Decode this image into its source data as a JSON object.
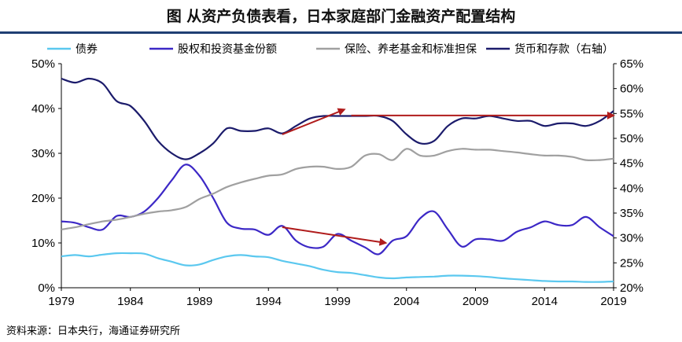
{
  "title": "图 从资产负债表看，日本家庭部门金融资产配置结构",
  "source": "资料来源：日本央行，海通证券研究所",
  "chart_data": {
    "type": "line",
    "title": "图 从资产负债表看，日本家庭部门金融资产配置结构",
    "x": [
      1979,
      1980,
      1981,
      1982,
      1983,
      1984,
      1985,
      1986,
      1987,
      1988,
      1989,
      1990,
      1991,
      1992,
      1993,
      1994,
      1995,
      1996,
      1997,
      1998,
      1999,
      2000,
      2001,
      2002,
      2003,
      2004,
      2005,
      2006,
      2007,
      2008,
      2009,
      2010,
      2011,
      2012,
      2013,
      2014,
      2015,
      2016,
      2017,
      2018,
      2019
    ],
    "xticks": [
      1979,
      1984,
      1989,
      1994,
      1999,
      2004,
      2009,
      2014,
      2019
    ],
    "left_axis": {
      "ylim": [
        0,
        50
      ],
      "ticks": [
        "0%",
        "10%",
        "20%",
        "30%",
        "40%",
        "50%"
      ]
    },
    "right_axis": {
      "ylim": [
        20,
        65
      ],
      "ticks": [
        "20%",
        "25%",
        "30%",
        "35%",
        "40%",
        "45%",
        "50%",
        "55%",
        "60%",
        "65%"
      ]
    },
    "series": [
      {
        "name": "债券",
        "axis": "left",
        "color": "#5bc8ef",
        "values": [
          7.0,
          7.3,
          7.0,
          7.4,
          7.7,
          7.7,
          7.6,
          6.6,
          5.8,
          5.0,
          5.2,
          6.2,
          7.0,
          7.3,
          7.0,
          6.8,
          6.0,
          5.4,
          4.8,
          4.0,
          3.5,
          3.3,
          2.8,
          2.3,
          2.1,
          2.3,
          2.4,
          2.5,
          2.7,
          2.7,
          2.6,
          2.4,
          2.1,
          1.9,
          1.7,
          1.5,
          1.4,
          1.4,
          1.3,
          1.3,
          1.4
        ]
      },
      {
        "name": "股权和投资基金份额",
        "axis": "left",
        "color": "#3c28c6",
        "values": [
          14.8,
          14.5,
          13.5,
          13.0,
          16.0,
          15.8,
          17.0,
          20.0,
          24.0,
          27.5,
          25.0,
          20.0,
          14.5,
          13.2,
          13.0,
          11.8,
          13.8,
          10.5,
          9.0,
          9.2,
          12.0,
          10.5,
          9.0,
          7.5,
          10.5,
          11.5,
          15.5,
          17.0,
          13.0,
          9.2,
          10.8,
          10.8,
          10.5,
          12.5,
          13.5,
          14.8,
          14.0,
          14.0,
          15.8,
          13.5,
          11.5
        ]
      },
      {
        "name": "保险、养老基金和标准担保",
        "axis": "left",
        "color": "#a0a0a0",
        "values": [
          13.0,
          13.5,
          14.2,
          14.8,
          15.2,
          15.8,
          16.5,
          17.0,
          17.3,
          18.0,
          19.8,
          21.0,
          22.5,
          23.5,
          24.3,
          25.0,
          25.3,
          26.5,
          27.0,
          27.0,
          26.5,
          27.0,
          29.5,
          29.8,
          28.5,
          31.0,
          29.5,
          29.5,
          30.5,
          31.0,
          30.8,
          30.8,
          30.5,
          30.2,
          29.8,
          29.5,
          29.5,
          29.2,
          28.5,
          28.5,
          28.8
        ]
      },
      {
        "name": "货币和存款（右轴）",
        "axis": "right",
        "color": "#1b1b6b",
        "values": [
          62.0,
          61.2,
          62.0,
          61.0,
          57.5,
          56.5,
          53.5,
          49.5,
          47.0,
          45.8,
          47.0,
          49.0,
          52.0,
          51.5,
          51.5,
          52.0,
          51.0,
          52.5,
          54.0,
          54.5,
          54.5,
          54.5,
          54.5,
          54.5,
          53.5,
          50.8,
          49.0,
          49.5,
          52.5,
          54.0,
          54.0,
          54.5,
          54.0,
          53.5,
          53.5,
          52.5,
          53.0,
          53.0,
          52.5,
          53.5,
          55.5
        ]
      }
    ],
    "legend": {
      "placement": "top",
      "entries": [
        "债券",
        "股权和投资基金份额",
        "保险、养老基金和标准担保",
        "货币和存款（右轴）"
      ]
    },
    "annotations": [
      {
        "type": "arrow",
        "color": "#b01c1c",
        "axis": "right",
        "from": [
          1995.0,
          50.8
        ],
        "to": [
          1999.5,
          55.8
        ]
      },
      {
        "type": "arrow",
        "color": "#b01c1c",
        "axis": "right",
        "from": [
          2000.0,
          54.6
        ],
        "to": [
          2019.0,
          54.6
        ]
      },
      {
        "type": "arrow",
        "color": "#b01c1c",
        "axis": "left",
        "from": [
          1995.0,
          13.5
        ],
        "to": [
          2002.5,
          10.0
        ]
      }
    ]
  }
}
